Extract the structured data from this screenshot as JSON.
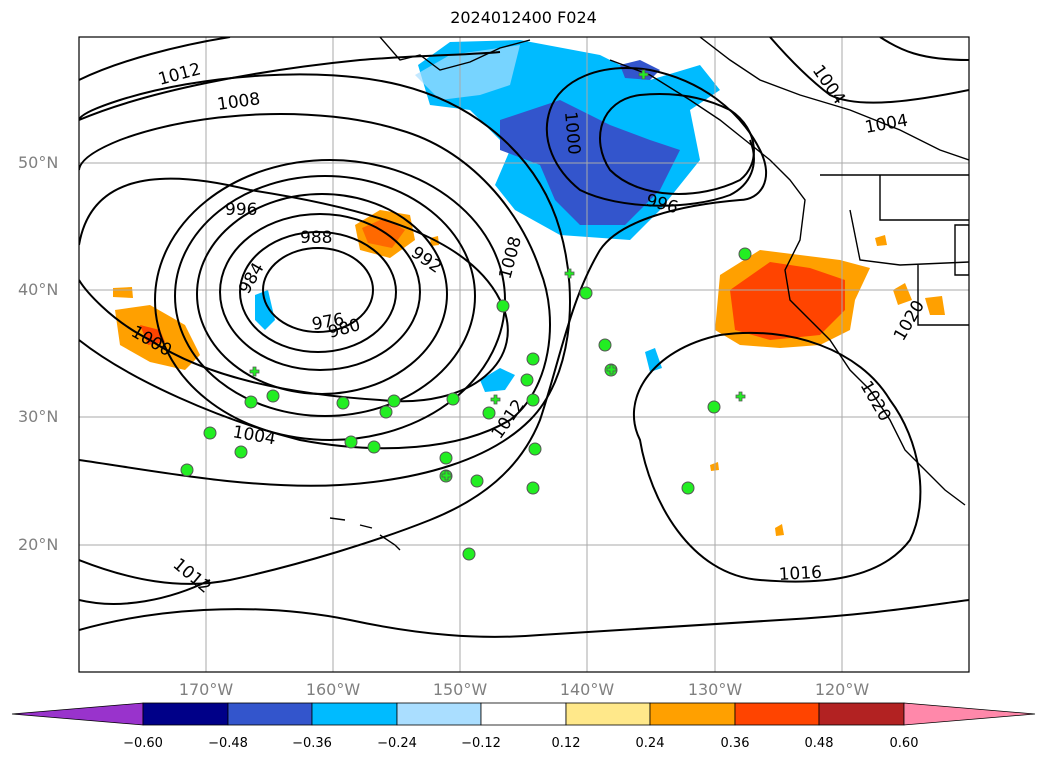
{
  "title": "2024012400 F024",
  "lat_labels": [
    "50°N",
    "40°N",
    "30°N",
    "20°N"
  ],
  "lon_labels": [
    "170°W",
    "160°W",
    "150°W",
    "140°W",
    "130°W",
    "120°W"
  ],
  "contour_labels": [
    "1012",
    "1008",
    "996",
    "988",
    "984",
    "976",
    "980",
    "992",
    "1000",
    "1004",
    "1008",
    "1012",
    "996",
    "1000",
    "1004",
    "1004",
    "1016",
    "1020",
    "1020",
    "1012"
  ],
  "colorbar": {
    "ticks": [
      "−0.60",
      "−0.48",
      "−0.36",
      "−0.24",
      "−0.12",
      "0.12",
      "0.24",
      "0.36",
      "0.48",
      "0.60"
    ],
    "colors": [
      "#9933cc",
      "#000088",
      "#3355cc",
      "#00bbff",
      "#aadeff",
      "#ffffff",
      "#ffe88a",
      "#ffa000",
      "#ff4400",
      "#b22222",
      "#ff88aa"
    ]
  },
  "colors": {
    "map_border": "#000000",
    "grid": "#aaaaaa",
    "station": "#22ee22"
  }
}
